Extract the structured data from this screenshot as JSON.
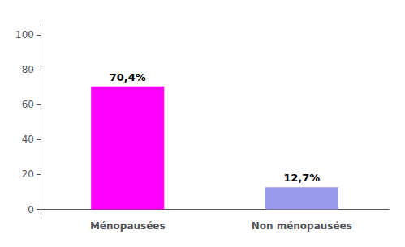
{
  "chart_data": {
    "type": "bar",
    "categories": [
      "Ménopausées",
      "Non ménopausées"
    ],
    "values": [
      70.4,
      12.7
    ],
    "value_labels": [
      "70,4%",
      "12,7%"
    ],
    "data_labels": true,
    "colors": [
      "#FF00FF",
      "#9999EE"
    ],
    "ylim": [
      -3,
      106
    ],
    "yticks": [
      0,
      20,
      40,
      60,
      80,
      100
    ],
    "grid": false
  }
}
